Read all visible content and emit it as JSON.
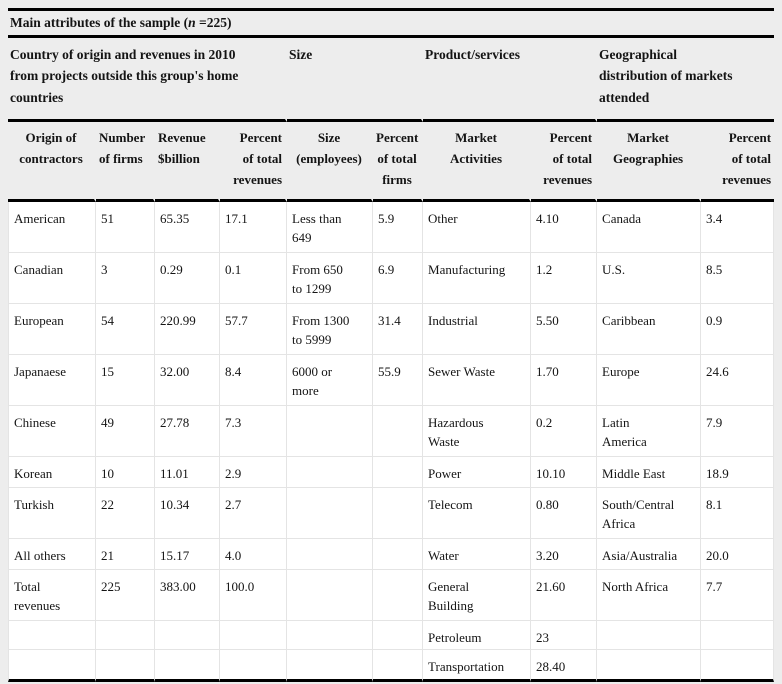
{
  "title": {
    "prefix": "Main attributes of the sample (",
    "n": "n",
    "suffix": " =225)"
  },
  "groups": [
    {
      "label": "Country of origin and revenues in 2010\nfrom projects outside this group's home\ncountries",
      "span": 4
    },
    {
      "label": "Size",
      "span": 2
    },
    {
      "label": "Product/services",
      "span": 2
    },
    {
      "label": "Geographical\ndistribution of markets\nattended",
      "span": 2
    }
  ],
  "columns": [
    {
      "label": "Origin of\ncontractors",
      "align": "center"
    },
    {
      "label": "Number\nof firms",
      "align": "left"
    },
    {
      "label": "Revenue\n$billion",
      "align": "left"
    },
    {
      "label": "Percent\nof total\nrevenues",
      "align": "right"
    },
    {
      "label": "Size\n(employees)",
      "align": "center"
    },
    {
      "label": "Percent\nof total\nfirms",
      "align": "center"
    },
    {
      "label": "Market\nActivities",
      "align": "center"
    },
    {
      "label": "Percent\nof total\nrevenues",
      "align": "right"
    },
    {
      "label": "Market\nGeographies",
      "align": "center"
    },
    {
      "label": "Percent\nof total\nrevenues",
      "align": "right"
    }
  ],
  "rows": [
    [
      "American",
      "51",
      "65.35",
      "17.1",
      "Less than\n649",
      "5.9",
      "Other",
      "4.10",
      "Canada",
      "3.4"
    ],
    [
      "Canadian",
      "3",
      "0.29",
      "0.1",
      "From 650\nto 1299",
      "6.9",
      "Manufacturing",
      "1.2",
      "U.S.",
      "8.5"
    ],
    [
      "European",
      "54",
      "220.99",
      "57.7",
      "From 1300\nto 5999",
      "31.4",
      "Industrial",
      "5.50",
      "Caribbean",
      "0.9"
    ],
    [
      "Japanaese",
      "15",
      "32.00",
      "8.4",
      "6000 or\nmore",
      "55.9",
      "Sewer Waste",
      "1.70",
      "Europe",
      "24.6"
    ],
    [
      "Chinese",
      "49",
      "27.78",
      "7.3",
      "",
      "",
      "Hazardous\nWaste",
      "0.2",
      "Latin\nAmerica",
      "7.9"
    ],
    [
      "Korean",
      "10",
      "11.01",
      "2.9",
      "",
      "",
      "Power",
      "10.10",
      "Middle East",
      "18.9"
    ],
    [
      "Turkish",
      "22",
      "10.34",
      "2.7",
      "",
      "",
      "Telecom",
      "0.80",
      "South/Central\nAfrica",
      "8.1"
    ],
    [
      "All others",
      "21",
      "15.17",
      "4.0",
      "",
      "",
      "Water",
      "3.20",
      "Asia/Australia",
      "20.0"
    ],
    [
      "Total\nrevenues",
      "225",
      "383.00",
      "100.0",
      "",
      "",
      "General\nBuilding",
      "21.60",
      "North Africa",
      "7.7"
    ],
    [
      "",
      "",
      "",
      "",
      "",
      "",
      "Petroleum",
      "23",
      "",
      ""
    ],
    [
      "",
      "",
      "",
      "",
      "",
      "",
      "Transportation",
      "28.40",
      "",
      ""
    ]
  ],
  "colors": {
    "header_background": "#ededed",
    "rule": "#000000",
    "grid": "#e4e4e4",
    "cell_background": "#ffffff"
  }
}
